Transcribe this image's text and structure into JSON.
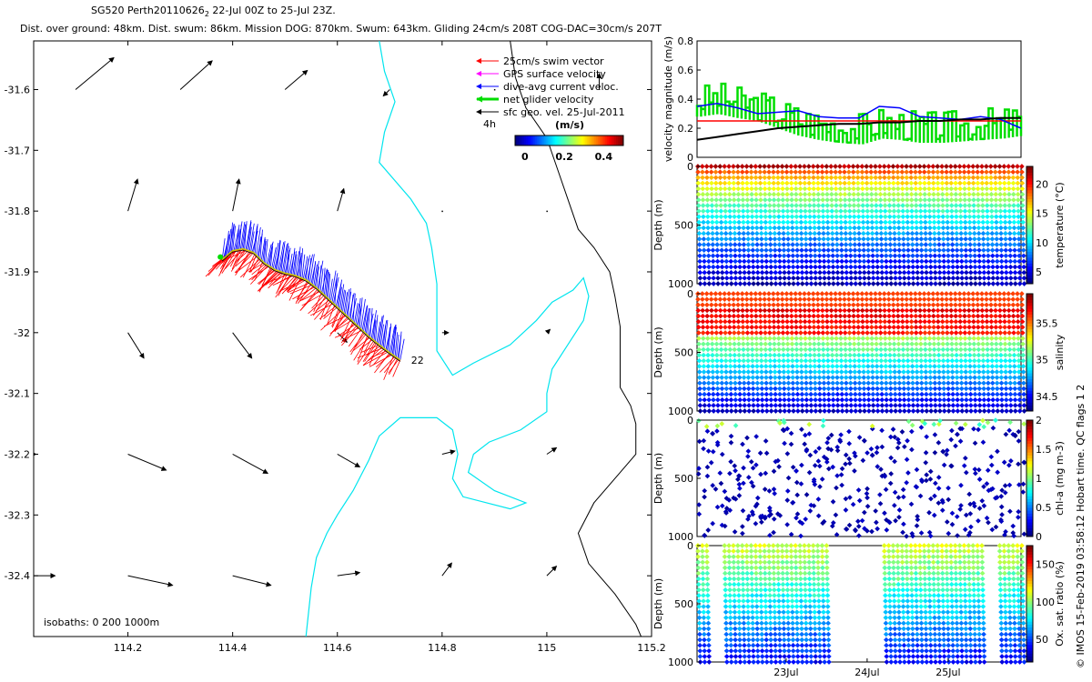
{
  "header": {
    "line1_a": "SG520 Perth20110626",
    "line1_sub": "2",
    "line1_b": " 22-Jul 00Z to 25-Jul 23Z.",
    "line2": "Dist. over ground: 48km. Dist. swum: 86km. Mission DOG: 870km. Swum: 643km. Gliding 24cm/s 208T COG-DAC=30cm/s 207T"
  },
  "credit": "© IMOS 15-Feb-2019 03:58:12 Hobart time. QC flags 1  2",
  "colors": {
    "swim": "#ff0000",
    "gps": "#ff00ff",
    "dac": "#0000ff",
    "net": "#00dd00",
    "geo": "#000000",
    "isobath200": "#00e5ee",
    "isobath1000": "#000000",
    "track": "#cccc00"
  },
  "map": {
    "xlim": [
      114.02,
      115.2
    ],
    "ylim": [
      -32.5,
      -31.52
    ],
    "xticks": [
      114.2,
      114.4,
      114.6,
      114.8,
      115,
      115.2
    ],
    "xtick_labels": [
      "114.2",
      "114.4",
      "114.6",
      "114.8",
      "115",
      "115.2"
    ],
    "yticks": [
      -31.6,
      -31.7,
      -31.8,
      -31.9,
      -32,
      -32.1,
      -32.2,
      -32.3,
      -32.4
    ],
    "ytick_labels": [
      "-31.6",
      "-31.7",
      "-31.8",
      "-31.9",
      "-32",
      "-32.1",
      "-32.2",
      "-32.3",
      "-32.4"
    ],
    "isobaths_label": "isobaths: 0   200  1000m",
    "end_label": "22",
    "legend": {
      "items": [
        {
          "key": "swim",
          "label": "25cm/s swim vector"
        },
        {
          "key": "gps",
          "label": "GPS surface velocity"
        },
        {
          "key": "dac",
          "label": "dive-avg current veloc."
        },
        {
          "key": "net",
          "label": "net glider velocity"
        },
        {
          "key": "geo",
          "label": "sfc geo. vel. 25-Jul-2011"
        }
      ],
      "interval_label": "4h",
      "colorbar_title": "(m/s)",
      "colorbar_ticks": [
        0,
        0.2,
        0.4
      ],
      "colorbar_tick_labels": [
        "0",
        "0.2",
        "0.4"
      ],
      "colorbar_range": [
        -0.05,
        0.5
      ]
    },
    "track": [
      [
        114.38,
        -31.88
      ],
      [
        114.4,
        -31.865
      ],
      [
        114.42,
        -31.862
      ],
      [
        114.44,
        -31.868
      ],
      [
        114.46,
        -31.885
      ],
      [
        114.48,
        -31.896
      ],
      [
        114.5,
        -31.902
      ],
      [
        114.52,
        -31.906
      ],
      [
        114.54,
        -31.913
      ],
      [
        114.56,
        -31.926
      ],
      [
        114.58,
        -31.942
      ],
      [
        114.6,
        -31.958
      ],
      [
        114.62,
        -31.974
      ],
      [
        114.64,
        -31.99
      ],
      [
        114.66,
        -32.006
      ],
      [
        114.68,
        -32.02
      ],
      [
        114.7,
        -32.033
      ],
      [
        114.72,
        -32.045
      ]
    ],
    "geo_vectors": [
      {
        "lon": 114.1,
        "lat": -31.6,
        "u": 0.12,
        "v": 0.1
      },
      {
        "lon": 114.3,
        "lat": -31.6,
        "u": 0.1,
        "v": 0.09
      },
      {
        "lon": 114.5,
        "lat": -31.6,
        "u": 0.07,
        "v": 0.06
      },
      {
        "lon": 114.7,
        "lat": -31.6,
        "u": -0.02,
        "v": -0.02
      },
      {
        "lon": 114.9,
        "lat": -31.6,
        "u": 0.0,
        "v": 0.0
      },
      {
        "lon": 115.1,
        "lat": -31.6,
        "u": 0.0,
        "v": 0.05
      },
      {
        "lon": 114.2,
        "lat": -31.8,
        "u": 0.03,
        "v": 0.1
      },
      {
        "lon": 114.4,
        "lat": -31.8,
        "u": 0.02,
        "v": 0.1
      },
      {
        "lon": 114.6,
        "lat": -31.8,
        "u": 0.02,
        "v": 0.07
      },
      {
        "lon": 114.8,
        "lat": -31.8,
        "u": 0.0,
        "v": 0.0
      },
      {
        "lon": 115.0,
        "lat": -31.8,
        "u": 0.0,
        "v": 0.0
      },
      {
        "lon": 114.2,
        "lat": -32.0,
        "u": 0.05,
        "v": -0.08
      },
      {
        "lon": 114.4,
        "lat": -32.0,
        "u": 0.06,
        "v": -0.08
      },
      {
        "lon": 114.6,
        "lat": -32.0,
        "u": 0.03,
        "v": -0.03
      },
      {
        "lon": 114.8,
        "lat": -32.0,
        "u": 0.02,
        "v": 0.0
      },
      {
        "lon": 115.0,
        "lat": -32.0,
        "u": 0.01,
        "v": 0.01
      },
      {
        "lon": 114.0,
        "lat": -32.2,
        "u": 0.04,
        "v": 0.0
      },
      {
        "lon": 114.2,
        "lat": -32.2,
        "u": 0.12,
        "v": -0.05
      },
      {
        "lon": 114.4,
        "lat": -32.2,
        "u": 0.11,
        "v": -0.06
      },
      {
        "lon": 114.6,
        "lat": -32.2,
        "u": 0.07,
        "v": -0.04
      },
      {
        "lon": 114.8,
        "lat": -32.2,
        "u": 0.04,
        "v": 0.01
      },
      {
        "lon": 115.0,
        "lat": -32.2,
        "u": 0.03,
        "v": 0.02
      },
      {
        "lon": 114.0,
        "lat": -32.4,
        "u": 0.1,
        "v": 0.0
      },
      {
        "lon": 114.2,
        "lat": -32.4,
        "u": 0.14,
        "v": -0.03
      },
      {
        "lon": 114.4,
        "lat": -32.4,
        "u": 0.12,
        "v": -0.03
      },
      {
        "lon": 114.6,
        "lat": -32.4,
        "u": 0.07,
        "v": 0.01
      },
      {
        "lon": 114.8,
        "lat": -32.4,
        "u": 0.03,
        "v": 0.04
      },
      {
        "lon": 115.0,
        "lat": -32.4,
        "u": 0.03,
        "v": 0.03
      }
    ],
    "isobath_200": [
      [
        [
          114.68,
          -31.52
        ],
        [
          114.69,
          -31.57
        ],
        [
          114.71,
          -31.62
        ],
        [
          114.69,
          -31.67
        ],
        [
          114.68,
          -31.72
        ],
        [
          114.74,
          -31.78
        ],
        [
          114.77,
          -31.82
        ],
        [
          114.78,
          -31.86
        ],
        [
          114.79,
          -31.92
        ],
        [
          114.79,
          -31.97
        ],
        [
          114.79,
          -32.03
        ],
        [
          114.82,
          -32.07
        ],
        [
          114.86,
          -32.05
        ],
        [
          114.93,
          -32.02
        ],
        [
          114.98,
          -31.98
        ],
        [
          115.01,
          -31.95
        ],
        [
          115.05,
          -31.93
        ],
        [
          115.07,
          -31.91
        ],
        [
          115.08,
          -31.94
        ],
        [
          115.07,
          -31.98
        ],
        [
          115.04,
          -32.02
        ],
        [
          115.01,
          -32.06
        ],
        [
          115.0,
          -32.1
        ],
        [
          115.0,
          -32.13
        ],
        [
          114.95,
          -32.16
        ],
        [
          114.89,
          -32.18
        ],
        [
          114.86,
          -32.2
        ],
        [
          114.85,
          -32.23
        ],
        [
          114.9,
          -32.26
        ],
        [
          114.96,
          -32.28
        ],
        [
          114.93,
          -32.29
        ],
        [
          114.84,
          -32.27
        ],
        [
          114.82,
          -32.24
        ],
        [
          114.83,
          -32.2
        ],
        [
          114.82,
          -32.16
        ],
        [
          114.79,
          -32.14
        ],
        [
          114.72,
          -32.14
        ],
        [
          114.68,
          -32.17
        ],
        [
          114.66,
          -32.21
        ],
        [
          114.63,
          -32.26
        ],
        [
          114.6,
          -32.3
        ],
        [
          114.58,
          -32.33
        ],
        [
          114.56,
          -32.37
        ],
        [
          114.55,
          -32.42
        ],
        [
          114.54,
          -32.5
        ]
      ]
    ],
    "isobath_1000": [
      [
        [
          114.93,
          -31.52
        ],
        [
          114.94,
          -31.58
        ],
        [
          114.96,
          -31.63
        ],
        [
          115.0,
          -31.68
        ],
        [
          115.02,
          -31.73
        ],
        [
          115.04,
          -31.78
        ],
        [
          115.06,
          -31.83
        ],
        [
          115.09,
          -31.86
        ],
        [
          115.12,
          -31.9
        ],
        [
          115.13,
          -31.94
        ],
        [
          115.14,
          -31.99
        ],
        [
          115.14,
          -32.04
        ],
        [
          115.14,
          -32.09
        ],
        [
          115.16,
          -32.12
        ],
        [
          115.17,
          -32.15
        ],
        [
          115.17,
          -32.2
        ],
        [
          115.14,
          -32.23
        ],
        [
          115.09,
          -32.28
        ],
        [
          115.06,
          -32.33
        ],
        [
          115.08,
          -32.38
        ],
        [
          115.13,
          -32.43
        ],
        [
          115.17,
          -32.48
        ],
        [
          115.18,
          -32.5
        ]
      ]
    ]
  },
  "velocity": {
    "ylabel": "velocity magnitude (m/s)",
    "ylim": [
      0,
      0.8
    ],
    "yticks": [
      0,
      0.2,
      0.4,
      0.6,
      0.8
    ],
    "ytick_labels": [
      "0",
      "0.2",
      "0.4",
      "0.6",
      "0.8"
    ],
    "x_days": [
      0,
      0.25,
      0.5,
      0.75,
      1.0,
      1.25,
      1.5,
      1.75,
      2.0,
      2.25,
      2.5,
      2.75,
      3.0,
      3.25,
      3.5,
      3.75,
      4.0
    ],
    "swim_red": [
      0.25,
      0.25,
      0.25,
      0.25,
      0.25,
      0.25,
      0.25,
      0.25,
      0.25,
      0.25,
      0.25,
      0.25,
      0.25,
      0.25,
      0.25,
      0.25,
      0.25
    ],
    "dac_blue": [
      0.35,
      0.37,
      0.34,
      0.3,
      0.31,
      0.32,
      0.28,
      0.27,
      0.27,
      0.35,
      0.34,
      0.28,
      0.27,
      0.26,
      0.28,
      0.26,
      0.2
    ],
    "geo_black": [
      0.12,
      0.14,
      0.16,
      0.18,
      0.2,
      0.21,
      0.22,
      0.23,
      0.23,
      0.24,
      0.24,
      0.25,
      0.25,
      0.26,
      0.26,
      0.27,
      0.27
    ],
    "net_green": [
      0.28,
      0.3,
      0.27,
      0.25,
      0.2,
      0.15,
      0.12,
      0.1,
      0.09,
      0.13,
      0.12,
      0.1,
      0.1,
      0.11,
      0.12,
      0.13,
      0.15
    ]
  },
  "time_axis": {
    "xlim_days": [
      0,
      4
    ],
    "ticks_days": [
      1.1,
      2.1,
      3.1
    ],
    "tick_labels": [
      "23Jul",
      "24Jul",
      "25Jul"
    ]
  },
  "sections": [
    {
      "name": "temperature",
      "label": "temperature (°C)",
      "ylabel": "Depth (m)",
      "ylim": [
        0,
        1000
      ],
      "yticks": [
        0,
        500,
        1000
      ],
      "ytick_labels": [
        "0",
        "500",
        "1000"
      ],
      "clim": [
        3,
        23
      ],
      "cticks": [
        5,
        10,
        15,
        20
      ],
      "ctick_labels": [
        "5",
        "10",
        "15",
        "20"
      ]
    },
    {
      "name": "salinity",
      "label": "salinity",
      "ylabel": "Depth (m)",
      "ylim": [
        0,
        1000
      ],
      "yticks": [
        0,
        500,
        1000
      ],
      "ytick_labels": [
        "0",
        "500",
        "1000"
      ],
      "clim": [
        34.3,
        35.9
      ],
      "cticks": [
        34.5,
        35,
        35.5
      ],
      "ctick_labels": [
        "34.5",
        "35",
        "35.5"
      ]
    },
    {
      "name": "chl-a",
      "label": "chl-a (mg m-3)",
      "ylabel": "Depth (m)",
      "ylim": [
        0,
        1000
      ],
      "yticks": [
        0,
        500,
        1000
      ],
      "ytick_labels": [
        "0",
        "500",
        "1000"
      ],
      "clim": [
        0,
        2
      ],
      "cticks": [
        0,
        0.5,
        1,
        1.5,
        2
      ],
      "ctick_labels": [
        "0",
        "0.5",
        "1",
        "1.5",
        "2"
      ]
    },
    {
      "name": "oxygen",
      "label": "Ox. sat. ratio (%)",
      "ylabel": "Depth (m)",
      "ylim": [
        0,
        1000
      ],
      "yticks": [
        0,
        500,
        1000
      ],
      "ytick_labels": [
        "0",
        "500",
        "1000"
      ],
      "clim": [
        20,
        175
      ],
      "cticks": [
        50,
        100,
        150
      ],
      "ctick_labels": [
        "50",
        "100",
        "150"
      ]
    }
  ]
}
